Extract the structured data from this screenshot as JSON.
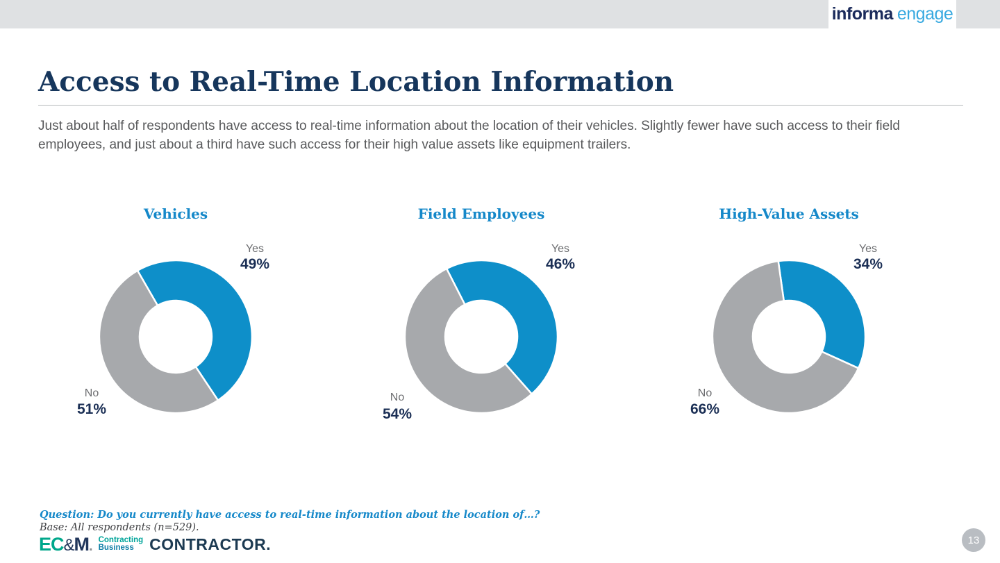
{
  "header": {
    "logo_informa": "informa",
    "logo_engage": "engage"
  },
  "title": "Access to Real-Time Location Information",
  "intro": "Just about half of respondents have access to real-time information about the location of their vehicles. Slightly fewer have such access to their field employees, and just about a third have such access for their high value assets like equipment trailers.",
  "charts": [
    {
      "title": "Vehicles",
      "yes_label": "Yes",
      "yes_value": "49%",
      "no_label": "No",
      "no_value": "51%"
    },
    {
      "title": "Field Employees",
      "yes_label": "Yes",
      "yes_value": "46%",
      "no_label": "No",
      "no_value": "54%"
    },
    {
      "title": "High-Value Assets",
      "yes_label": "Yes",
      "yes_value": "34%",
      "no_label": "No",
      "no_value": "66%"
    }
  ],
  "chart_data": [
    {
      "type": "pie",
      "subtype": "donut",
      "title": "Vehicles",
      "categories": [
        "Yes",
        "No"
      ],
      "values": [
        49,
        51
      ],
      "unit": "percent",
      "colors": [
        "#0e8fc9",
        "#a7a9ac"
      ],
      "start_angle": -30,
      "legend": "none",
      "data_labels": "outside"
    },
    {
      "type": "pie",
      "subtype": "donut",
      "title": "Field Employees",
      "categories": [
        "Yes",
        "No"
      ],
      "values": [
        46,
        54
      ],
      "unit": "percent",
      "colors": [
        "#0e8fc9",
        "#a7a9ac"
      ],
      "start_angle": -27,
      "legend": "none",
      "data_labels": "outside"
    },
    {
      "type": "pie",
      "subtype": "donut",
      "title": "High-Value Assets",
      "categories": [
        "Yes",
        "No"
      ],
      "values": [
        34,
        66
      ],
      "unit": "percent",
      "colors": [
        "#0e8fc9",
        "#a7a9ac"
      ],
      "start_angle": -8,
      "legend": "none",
      "data_labels": "outside"
    }
  ],
  "footer": {
    "question": "Question:  Do you currently have access to real-time information about the location of…?",
    "base": "Base: All respondents (n=529).",
    "page_number": "13",
    "logos": {
      "ecm_ec": "EC",
      "ecm_amp": "&",
      "ecm_m": "M",
      "ecm_dot": ".",
      "contracting": "Contracting",
      "business": "Business",
      "contractor": "CONTRACTOR."
    }
  },
  "colors": {
    "accent_blue": "#1588c9",
    "navy_title": "#16365c",
    "value_navy": "#1b2f55",
    "pie_blue": "#0e8fc9",
    "pie_gray": "#a7a9ac",
    "top_bar_gray": "#dfe1e3"
  }
}
